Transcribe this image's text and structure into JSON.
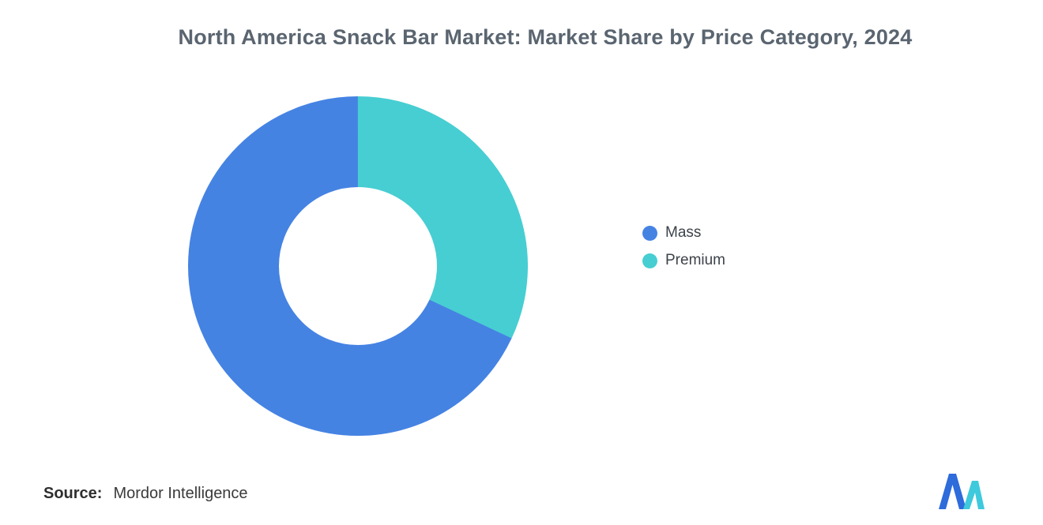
{
  "title": "North America Snack Bar Market: Market Share by Price Category, 2024",
  "chart_data": {
    "type": "pie",
    "subtype": "donut",
    "title": "North America Snack Bar Market: Market Share by Price Category, 2024",
    "unit": "percent of market share",
    "series": [
      {
        "name": "Mass",
        "value": 68,
        "color": "#4583e3"
      },
      {
        "name": "Premium",
        "value": 32,
        "color": "#47ced2"
      }
    ],
    "start_angle": "top",
    "direction": "counter-clockwise",
    "donut_hole_ratio": 0.47,
    "legend_position": "right",
    "grid": "off"
  },
  "source": {
    "label": "Source:",
    "value": "Mordor Intelligence"
  },
  "logo": {
    "name": "mordor-intelligence-logo",
    "blue": "#2e6bdb",
    "teal": "#3ec9dc"
  }
}
